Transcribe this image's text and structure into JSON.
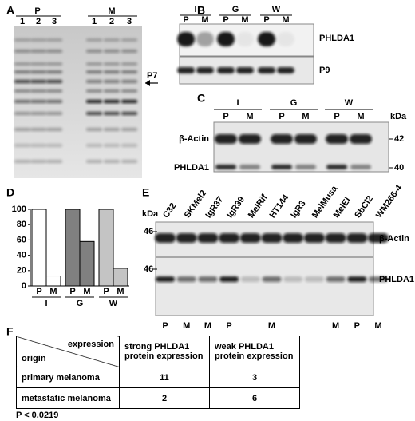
{
  "panel_labels": [
    "A",
    "B",
    "C",
    "D",
    "E",
    "F"
  ],
  "panel_a": {
    "groups": [
      "P",
      "M"
    ],
    "lanes": [
      "1",
      "2",
      "3",
      "1",
      "2",
      "3"
    ],
    "marker": "P7"
  },
  "panel_b": {
    "groups": [
      "I",
      "G",
      "W"
    ],
    "lanes": [
      "P",
      "M",
      "P",
      "M",
      "P",
      "M"
    ],
    "rows": [
      "PHLDA1",
      "P9"
    ]
  },
  "panel_c": {
    "groups": [
      "I",
      "G",
      "W"
    ],
    "lanes": [
      "P",
      "M",
      "P",
      "M",
      "P",
      "M"
    ],
    "unit": "kDa",
    "rows": [
      {
        "label": "β-Actin",
        "size": "42"
      },
      {
        "label": "PHLDA1",
        "size": "40"
      }
    ]
  },
  "chart_data": {
    "type": "bar",
    "categories": [
      "P",
      "M",
      "P",
      "M",
      "P",
      "M"
    ],
    "groups": [
      "I",
      "G",
      "W"
    ],
    "values": [
      100,
      13,
      100,
      58,
      100,
      23
    ],
    "colors": [
      "#ffffff",
      "#ffffff",
      "#808080",
      "#808080",
      "#c4c4c4",
      "#c4c4c4"
    ],
    "ylim": [
      0,
      100
    ],
    "yticks": [
      0,
      20,
      40,
      60,
      80,
      100
    ]
  },
  "panel_e": {
    "unit": "kDa",
    "lanes": [
      {
        "name": "C32",
        "origin": "P"
      },
      {
        "name": "SKMel2",
        "origin": "M"
      },
      {
        "name": "IgR37",
        "origin": "M"
      },
      {
        "name": "IgR39",
        "origin": "P"
      },
      {
        "name": "MelRif",
        "origin": null
      },
      {
        "name": "HT144",
        "origin": "M"
      },
      {
        "name": "IgR3",
        "origin": null
      },
      {
        "name": "MelMusa",
        "origin": null
      },
      {
        "name": "MelEi",
        "origin": "M"
      },
      {
        "name": "SbCl2",
        "origin": "P"
      },
      {
        "name": "WM266-4",
        "origin": "M"
      }
    ],
    "rows": [
      {
        "label": "β-Actin",
        "size": "46"
      },
      {
        "label": "PHLDA1",
        "size": "46"
      }
    ]
  },
  "panel_f": {
    "row_header": "origin",
    "col_header": "expression",
    "columns": [
      "strong PHLDA1 protein expression",
      "weak PHLDA1 protein expression"
    ],
    "rows": [
      {
        "label": "primary melanoma",
        "values": [
          11,
          3
        ]
      },
      {
        "label": "metastatic melanoma",
        "values": [
          2,
          6
        ]
      }
    ],
    "footnote": "P < 0.0219"
  }
}
